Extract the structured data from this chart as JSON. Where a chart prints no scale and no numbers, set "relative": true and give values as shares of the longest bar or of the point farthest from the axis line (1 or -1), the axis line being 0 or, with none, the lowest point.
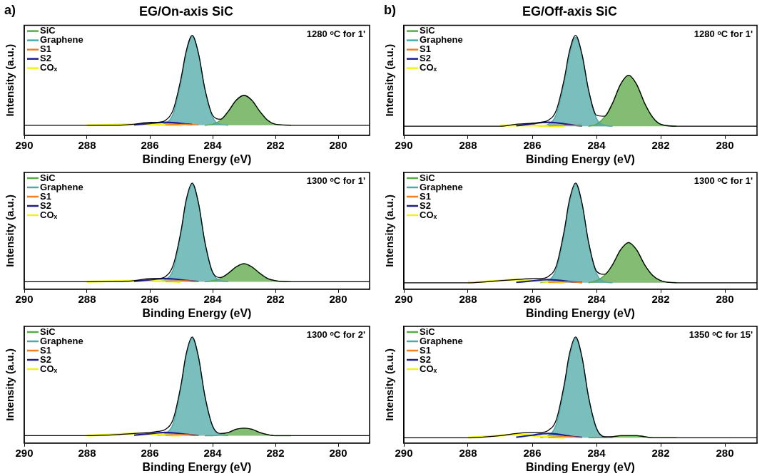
{
  "chart_data": [
    {
      "type": "line",
      "title": "EG/On-axis SiC",
      "xlabel": "Binding Energy (eV)",
      "ylabel": "Intensity (a.u.)",
      "relative": true,
      "tick_labels": "x",
      "legend": "top left",
      "annotations": [
        "a)",
        "1280 ᵒC for 1'"
      ],
      "xlim": [
        290,
        279
      ],
      "xticks": [
        290,
        288,
        286,
        284,
        282,
        280
      ],
      "x": [
        290,
        289,
        288,
        287,
        286.5,
        286,
        285.75,
        285.5,
        285.25,
        285,
        284.85,
        284.65,
        284.45,
        284.25,
        284,
        283.75,
        283.5,
        283.25,
        283,
        282.75,
        282.5,
        282.25,
        282,
        281.5,
        281,
        280,
        279
      ],
      "series": [
        {
          "name": "SiC",
          "type": "area",
          "color": "#5aa845",
          "values": [
            null,
            null,
            null,
            null,
            null,
            null,
            null,
            null,
            null,
            null,
            null,
            null,
            null,
            0.1,
            0.11,
            0.15,
            0.24,
            0.35,
            0.4,
            0.35,
            0.24,
            0.15,
            0.11,
            0.1,
            null,
            null,
            null
          ]
        },
        {
          "name": "Graphene",
          "type": "area",
          "color": "#4fa9a9",
          "values": [
            null,
            null,
            null,
            null,
            null,
            null,
            0.1,
            0.12,
            0.22,
            0.55,
            0.81,
            0.99,
            0.81,
            0.46,
            0.18,
            0.11,
            0.1,
            null,
            null,
            null,
            null,
            null,
            null,
            null,
            null,
            null,
            null
          ]
        },
        {
          "name": "S1",
          "type": "line",
          "color": "#f57f20",
          "values": [
            null,
            null,
            null,
            null,
            null,
            null,
            null,
            0.104,
            0.108,
            0.11,
            0.109,
            0.106,
            0.103,
            null,
            null,
            null,
            null,
            null,
            null,
            null,
            null,
            null,
            null,
            null,
            null,
            null,
            null
          ]
        },
        {
          "name": "S2",
          "type": "line",
          "color": "#1c1c8c",
          "values": [
            null,
            null,
            null,
            null,
            0.104,
            0.118,
            0.126,
            0.13,
            0.126,
            0.118,
            0.113,
            0.107,
            null,
            null,
            null,
            null,
            null,
            null,
            null,
            null,
            null,
            null,
            null,
            null,
            null,
            null,
            null
          ]
        },
        {
          "name": "COₓ",
          "type": "line",
          "color": "#f2f21a",
          "values": [
            null,
            null,
            0.1,
            0.107,
            0.11,
            0.107,
            0.105,
            0.103,
            0.101,
            0.1,
            null,
            null,
            null,
            null,
            null,
            null,
            null,
            null,
            null,
            null,
            null,
            null,
            null,
            null,
            null,
            null,
            null
          ]
        },
        {
          "type": "line",
          "color": "#000000",
          "values": [
            0.1,
            0.1,
            0.1,
            0.1,
            0.11,
            0.13,
            0.13,
            0.15,
            0.26,
            0.58,
            0.83,
            1,
            0.82,
            0.47,
            0.2,
            0.16,
            0.24,
            0.35,
            0.4,
            0.35,
            0.24,
            0.15,
            0.11,
            0.1,
            0.1,
            0.1,
            0.1
          ]
        }
      ]
    },
    {
      "type": "line",
      "title": "EG/Off-axis SiC",
      "xlabel": "Binding Energy (eV)",
      "ylabel": "Intensity (a.u.)",
      "relative": true,
      "tick_labels": "x",
      "legend": "top left",
      "annotations": [
        "b)",
        "1280 ᵒC for 1'"
      ],
      "xlim": [
        290,
        279
      ],
      "xticks": [
        290,
        288,
        286,
        284,
        282,
        280
      ],
      "x": [
        290,
        289,
        288,
        287,
        286.5,
        286,
        285.75,
        285.5,
        285.25,
        285,
        284.85,
        284.65,
        284.45,
        284.25,
        284,
        283.75,
        283.5,
        283.25,
        283,
        282.75,
        282.5,
        282.25,
        282,
        281.5,
        281,
        280,
        279
      ],
      "series": [
        {
          "name": "SiC",
          "type": "area",
          "color": "#5aa845",
          "values": [
            null,
            null,
            null,
            null,
            null,
            null,
            null,
            null,
            null,
            null,
            null,
            null,
            null,
            0.09,
            0.11,
            0.18,
            0.32,
            0.51,
            0.6,
            0.51,
            0.32,
            0.18,
            0.11,
            0.09,
            null,
            null,
            null
          ]
        },
        {
          "name": "Graphene",
          "type": "area",
          "color": "#4fa9a9",
          "values": [
            null,
            null,
            null,
            null,
            null,
            null,
            0.09,
            0.11,
            0.21,
            0.54,
            0.8,
            0.98,
            0.8,
            0.45,
            0.17,
            0.1,
            0.09,
            null,
            null,
            null,
            null,
            null,
            null,
            null,
            null,
            null,
            null
          ]
        },
        {
          "name": "S1",
          "type": "line",
          "color": "#f57f20",
          "values": [
            null,
            null,
            null,
            null,
            null,
            null,
            null,
            0.094,
            0.098,
            0.1,
            0.099,
            0.096,
            0.093,
            null,
            null,
            null,
            null,
            null,
            null,
            null,
            null,
            null,
            null,
            null,
            null,
            null,
            null
          ]
        },
        {
          "name": "S2",
          "type": "line",
          "color": "#1c1c8c",
          "values": [
            null,
            null,
            null,
            null,
            0.095,
            0.114,
            0.125,
            0.13,
            0.125,
            0.114,
            0.107,
            0.099,
            0.094,
            null,
            null,
            null,
            null,
            null,
            null,
            null,
            null,
            null,
            null,
            null,
            null,
            null,
            null
          ]
        },
        {
          "name": "COₓ",
          "type": "line",
          "color": "#f2f21a",
          "values": [
            null,
            null,
            null,
            0.097,
            0.1,
            0.097,
            0.095,
            0.093,
            0.091,
            0.09,
            null,
            null,
            null,
            null,
            null,
            null,
            null,
            null,
            null,
            null,
            null,
            null,
            null,
            null,
            null,
            null,
            null
          ]
        },
        {
          "type": "line",
          "color": "#000000",
          "values": [
            0.09,
            0.09,
            0.09,
            0.09,
            0.11,
            0.12,
            0.13,
            0.15,
            0.25,
            0.57,
            0.83,
            1,
            0.81,
            0.46,
            0.2,
            0.19,
            0.32,
            0.51,
            0.6,
            0.51,
            0.32,
            0.18,
            0.11,
            0.09,
            0.09,
            0.09,
            0.09
          ]
        }
      ]
    },
    {
      "type": "line",
      "xlabel": "Binding Energy (eV)",
      "ylabel": "Intensity (a.u.)",
      "relative": true,
      "tick_labels": "x",
      "legend": "top left",
      "annotations": [
        "1300 ᵒC for 1'"
      ],
      "xlim": [
        290,
        279
      ],
      "xticks": [
        290,
        288,
        286,
        284,
        282,
        280
      ],
      "x": [
        290,
        289,
        288,
        287,
        286.5,
        286,
        285.75,
        285.5,
        285.25,
        285,
        284.85,
        284.65,
        284.45,
        284.25,
        284,
        283.75,
        283.5,
        283.25,
        283,
        282.75,
        282.5,
        282.25,
        282,
        281.5,
        281,
        280,
        279
      ],
      "series": [
        {
          "name": "SiC",
          "type": "area",
          "color": "#5aa845",
          "values": [
            null,
            null,
            null,
            null,
            null,
            null,
            null,
            null,
            null,
            null,
            null,
            null,
            null,
            0.07,
            0.08,
            0.1,
            0.15,
            0.21,
            0.24,
            0.21,
            0.15,
            0.1,
            0.08,
            0.07,
            null,
            null,
            null
          ]
        },
        {
          "name": "Graphene",
          "type": "area",
          "color": "#4fa9a9",
          "values": [
            null,
            null,
            null,
            null,
            null,
            null,
            0.07,
            0.09,
            0.19,
            0.54,
            0.81,
            0.99,
            0.81,
            0.45,
            0.16,
            0.08,
            0.07,
            null,
            null,
            null,
            null,
            null,
            null,
            null,
            null,
            null,
            null
          ]
        },
        {
          "name": "S1",
          "type": "line",
          "color": "#f57f20",
          "values": [
            null,
            null,
            null,
            null,
            null,
            null,
            null,
            0.074,
            0.078,
            0.08,
            0.079,
            0.076,
            0.073,
            null,
            null,
            null,
            null,
            null,
            null,
            null,
            null,
            null,
            null,
            null,
            null,
            null,
            null
          ]
        },
        {
          "name": "S2",
          "type": "line",
          "color": "#1c1c8c",
          "values": [
            null,
            null,
            null,
            null,
            0.074,
            0.088,
            0.096,
            0.1,
            0.096,
            0.088,
            0.083,
            0.077,
            0.073,
            null,
            null,
            null,
            null,
            null,
            null,
            null,
            null,
            null,
            null,
            null,
            null,
            null,
            null
          ]
        },
        {
          "name": "COₓ",
          "type": "line",
          "color": "#f2f21a",
          "values": [
            null,
            null,
            0.07,
            0.077,
            0.08,
            0.077,
            0.075,
            0.073,
            0.071,
            0.07,
            null,
            null,
            null,
            null,
            null,
            null,
            null,
            null,
            null,
            null,
            null,
            null,
            null,
            null,
            null,
            null,
            null
          ]
        },
        {
          "type": "line",
          "color": "#000000",
          "values": [
            0.07,
            0.07,
            0.07,
            0.07,
            0.08,
            0.1,
            0.1,
            0.12,
            0.23,
            0.56,
            0.83,
            1,
            0.81,
            0.45,
            0.16,
            0.11,
            0.15,
            0.21,
            0.24,
            0.21,
            0.15,
            0.1,
            0.08,
            0.07,
            0.07,
            0.07,
            0.07
          ]
        }
      ]
    },
    {
      "type": "line",
      "xlabel": "Binding Energy (eV)",
      "ylabel": "Intensity (a.u.)",
      "relative": true,
      "tick_labels": "x",
      "legend": "top left",
      "annotations": [
        "1300 ᵒC for 1'"
      ],
      "xlim": [
        290,
        279
      ],
      "xticks": [
        290,
        288,
        286,
        284,
        282,
        280
      ],
      "x": [
        290,
        289,
        288,
        287,
        286.5,
        286,
        285.75,
        285.5,
        285.25,
        285,
        284.85,
        284.65,
        284.45,
        284.25,
        284,
        283.75,
        283.5,
        283.25,
        283,
        282.75,
        282.5,
        282.25,
        282,
        281.5,
        281,
        280,
        279
      ],
      "series": [
        {
          "name": "SiC",
          "type": "area",
          "color": "#5aa845",
          "values": [
            null,
            null,
            null,
            null,
            null,
            null,
            null,
            null,
            null,
            null,
            null,
            null,
            null,
            0.06,
            0.08,
            0.13,
            0.23,
            0.37,
            0.44,
            0.37,
            0.23,
            0.13,
            0.08,
            0.06,
            null,
            null,
            null
          ]
        },
        {
          "name": "Graphene",
          "type": "area",
          "color": "#4fa9a9",
          "values": [
            null,
            null,
            null,
            null,
            null,
            null,
            0.06,
            0.08,
            0.19,
            0.53,
            0.8,
            0.99,
            0.8,
            0.44,
            0.15,
            0.07,
            0.06,
            null,
            null,
            null,
            null,
            null,
            null,
            null,
            null,
            null,
            null
          ]
        },
        {
          "name": "S1",
          "type": "line",
          "color": "#f57f20",
          "values": [
            null,
            null,
            null,
            null,
            null,
            null,
            null,
            0.064,
            0.068,
            0.07,
            0.069,
            0.066,
            0.063,
            null,
            null,
            null,
            null,
            null,
            null,
            null,
            null,
            null,
            null,
            null,
            null,
            null,
            null
          ]
        },
        {
          "name": "S2",
          "type": "line",
          "color": "#1c1c8c",
          "values": [
            null,
            null,
            null,
            null,
            0.064,
            0.078,
            0.086,
            0.09,
            0.086,
            0.078,
            0.073,
            0.067,
            0.063,
            null,
            null,
            null,
            null,
            null,
            null,
            null,
            null,
            null,
            null,
            null,
            null,
            null,
            null
          ]
        },
        {
          "name": "COₓ",
          "type": "line",
          "color": "#f2f21a",
          "values": [
            null,
            null,
            0.061,
            0.081,
            0.09,
            0.081,
            0.074,
            0.068,
            0.063,
            0.061,
            null,
            null,
            null,
            null,
            null,
            null,
            null,
            null,
            null,
            null,
            null,
            null,
            null,
            null,
            null,
            null,
            null
          ]
        },
        {
          "type": "line",
          "color": "#000000",
          "values": [
            0.06,
            0.06,
            0.06,
            0.08,
            0.09,
            0.1,
            0.1,
            0.12,
            0.22,
            0.56,
            0.83,
            1,
            0.81,
            0.45,
            0.17,
            0.14,
            0.23,
            0.37,
            0.44,
            0.37,
            0.23,
            0.13,
            0.08,
            0.06,
            0.06,
            0.06,
            0.06
          ]
        }
      ]
    },
    {
      "type": "line",
      "xlabel": "Binding Energy (eV)",
      "ylabel": "Intensity (a.u.)",
      "relative": true,
      "tick_labels": "x",
      "legend": "top left",
      "annotations": [
        "1300 ᵒC for 2'"
      ],
      "xlim": [
        290,
        279
      ],
      "xticks": [
        290,
        288,
        286,
        284,
        282,
        280
      ],
      "x": [
        290,
        289,
        288,
        287,
        286.5,
        286,
        285.75,
        285.5,
        285.25,
        285,
        284.85,
        284.65,
        284.45,
        284.25,
        284,
        283.75,
        283.5,
        283.25,
        283,
        282.75,
        282.5,
        282.25,
        282,
        281.5,
        281,
        280,
        279
      ],
      "series": [
        {
          "name": "SiC",
          "type": "area",
          "color": "#5aa845",
          "values": [
            null,
            null,
            null,
            null,
            null,
            null,
            null,
            null,
            null,
            null,
            null,
            null,
            null,
            0.07,
            0.07,
            0.08,
            0.1,
            0.13,
            0.14,
            0.13,
            0.1,
            0.08,
            0.07,
            0.07,
            null,
            null,
            null
          ]
        },
        {
          "name": "Graphene",
          "type": "area",
          "color": "#4fa9a9",
          "values": [
            null,
            null,
            null,
            null,
            null,
            null,
            0.07,
            0.09,
            0.19,
            0.54,
            0.81,
            0.99,
            0.81,
            0.45,
            0.16,
            0.08,
            0.07,
            null,
            null,
            null,
            null,
            null,
            null,
            null,
            null,
            null,
            null
          ]
        },
        {
          "name": "S1",
          "type": "line",
          "color": "#f57f20",
          "values": [
            null,
            null,
            null,
            null,
            null,
            null,
            null,
            0.074,
            0.078,
            0.08,
            0.079,
            0.076,
            0.073,
            null,
            null,
            null,
            null,
            null,
            null,
            null,
            null,
            null,
            null,
            null,
            null,
            null,
            null
          ]
        },
        {
          "name": "S2",
          "type": "line",
          "color": "#1c1c8c",
          "values": [
            null,
            null,
            null,
            null,
            0.074,
            0.088,
            0.096,
            0.1,
            0.096,
            0.088,
            0.083,
            0.077,
            0.073,
            null,
            null,
            null,
            null,
            null,
            null,
            null,
            null,
            null,
            null,
            null,
            null,
            null,
            null
          ]
        },
        {
          "name": "COₓ",
          "type": "line",
          "color": "#f2f21a",
          "values": [
            null,
            null,
            0.071,
            0.084,
            0.09,
            0.084,
            0.079,
            0.075,
            0.072,
            0.071,
            null,
            null,
            null,
            null,
            null,
            null,
            null,
            null,
            null,
            null,
            null,
            null,
            null,
            null,
            null,
            null,
            null
          ]
        },
        {
          "type": "line",
          "color": "#000000",
          "values": [
            0.07,
            0.07,
            0.07,
            0.08,
            0.09,
            0.1,
            0.11,
            0.13,
            0.23,
            0.56,
            0.83,
            1,
            0.81,
            0.45,
            0.16,
            0.09,
            0.1,
            0.13,
            0.14,
            0.13,
            0.1,
            0.08,
            0.07,
            0.07,
            0.07,
            0.07,
            0.07
          ]
        }
      ]
    },
    {
      "type": "line",
      "xlabel": "Binding Energy (eV)",
      "ylabel": "Intensity (a.u.)",
      "relative": true,
      "tick_labels": "x",
      "legend": "top left",
      "annotations": [
        "1350 ᵒC for 15'"
      ],
      "xlim": [
        290,
        279
      ],
      "xticks": [
        290,
        288,
        286,
        284,
        282,
        280
      ],
      "x": [
        290,
        289,
        288,
        287,
        286.5,
        286,
        285.75,
        285.5,
        285.25,
        285,
        284.85,
        284.65,
        284.45,
        284.25,
        284,
        283.75,
        283.5,
        283.25,
        283,
        282.75,
        282.5,
        282.25,
        282,
        281.5,
        281,
        280,
        279
      ],
      "series": [
        {
          "name": "SiC",
          "type": "area",
          "color": "#5aa845",
          "values": [
            null,
            null,
            null,
            null,
            null,
            null,
            null,
            null,
            null,
            null,
            null,
            null,
            null,
            0.05,
            0.05,
            0.05,
            0.06,
            0.07,
            0.07,
            0.07,
            0.06,
            0.05,
            0.05,
            0.05,
            null,
            null,
            null
          ]
        },
        {
          "name": "Graphene",
          "type": "area",
          "color": "#4fa9a9",
          "values": [
            null,
            null,
            null,
            null,
            null,
            null,
            0.05,
            0.07,
            0.18,
            0.53,
            0.8,
            0.99,
            0.8,
            0.44,
            0.14,
            0.06,
            0.05,
            null,
            null,
            null,
            null,
            null,
            null,
            null,
            null,
            null,
            null
          ]
        },
        {
          "name": "S1",
          "type": "line",
          "color": "#f57f20",
          "values": [
            null,
            null,
            null,
            null,
            null,
            null,
            null,
            0.054,
            0.058,
            0.06,
            0.059,
            0.056,
            0.053,
            null,
            null,
            null,
            null,
            null,
            null,
            null,
            null,
            null,
            null,
            null,
            null,
            null,
            null
          ]
        },
        {
          "name": "S2",
          "type": "line",
          "color": "#1c1c8c",
          "values": [
            null,
            null,
            null,
            null,
            0.055,
            0.074,
            0.085,
            0.09,
            0.085,
            0.074,
            0.067,
            0.059,
            0.054,
            null,
            null,
            null,
            null,
            null,
            null,
            null,
            null,
            null,
            null,
            null,
            null,
            null,
            null
          ]
        },
        {
          "name": "COₓ",
          "type": "line",
          "color": "#f2f21a",
          "values": [
            null,
            null,
            0.051,
            0.071,
            0.08,
            0.071,
            0.064,
            0.058,
            0.053,
            0.051,
            null,
            null,
            null,
            null,
            null,
            null,
            null,
            null,
            null,
            null,
            null,
            null,
            null,
            null,
            null,
            null,
            null
          ]
        },
        {
          "type": "line",
          "color": "#000000",
          "values": [
            0.05,
            0.05,
            0.05,
            0.07,
            0.09,
            0.1,
            0.1,
            0.12,
            0.22,
            0.56,
            0.83,
            1,
            0.81,
            0.44,
            0.14,
            0.06,
            0.06,
            0.07,
            0.07,
            0.07,
            0.06,
            0.05,
            0.05,
            0.05,
            0.05,
            0.05,
            0.05
          ]
        }
      ]
    }
  ]
}
